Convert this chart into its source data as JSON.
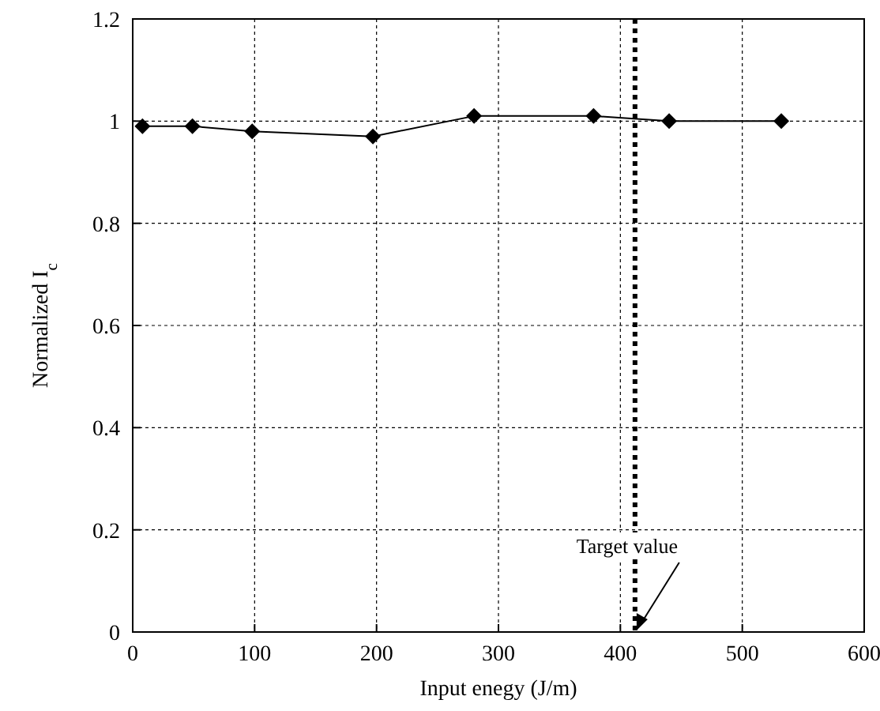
{
  "chart_data": {
    "type": "line",
    "xlabel": "Input enegy (J/m)",
    "ylabel": "Normalized I$_{c}$",
    "x": [
      8,
      49,
      98,
      197,
      280,
      378,
      440,
      532
    ],
    "series": [
      {
        "color": "#000000",
        "values": [
          0.99,
          0.99,
          0.98,
          0.97,
          1.01,
          1.01,
          1.0,
          1.0
        ]
      }
    ],
    "xlim": [
      0,
      600
    ],
    "xticks": [
      0,
      100,
      200,
      300,
      400,
      500,
      600
    ],
    "ylim": [
      0,
      1.2
    ],
    "yticks": [
      0,
      {
        "value": 0.2,
        "label": "0.2"
      },
      {
        "value": 0.4,
        "label": "0.4"
      },
      {
        "value": 0.6,
        "label": "0.6"
      },
      {
        "value": 0.8,
        "label": "0.8"
      },
      1,
      {
        "value": 1.2,
        "label": "1.2"
      }
    ],
    "grid": true,
    "marker": "diamond",
    "line_style": "solid",
    "ref_lines": [
      {
        "axis": "x",
        "value": 412,
        "label": "Target value",
        "color": "#000000",
        "line_style": "dotted"
      }
    ]
  }
}
